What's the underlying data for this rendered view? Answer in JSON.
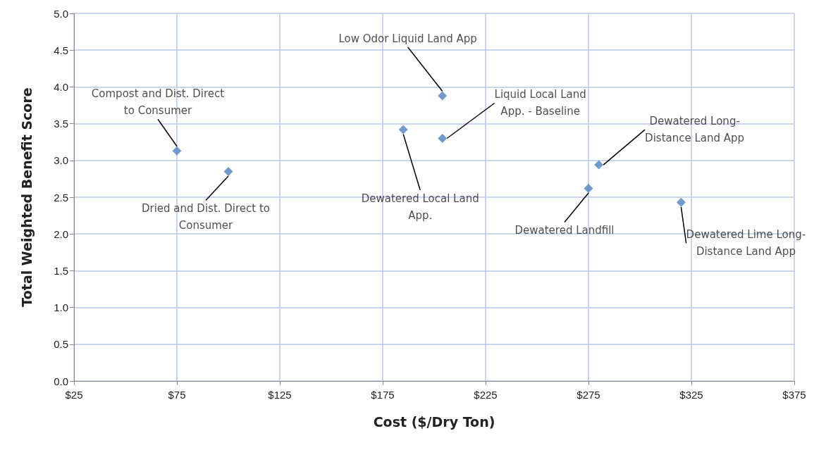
{
  "chart_data": {
    "type": "scatter",
    "xlabel": "Cost ($/Dry Ton)",
    "ylabel": "Total Weighted Benefit Score",
    "x": [
      75,
      100,
      185,
      204,
      204,
      275,
      280,
      320
    ],
    "values": [
      3.13,
      2.85,
      3.42,
      3.88,
      3.3,
      2.62,
      2.94,
      2.43
    ],
    "color": "#4f81bd",
    "marker": "diamond",
    "grid": true,
    "xlim": [
      25,
      375
    ],
    "xticks": [
      {
        "value": 25,
        "label": "$25"
      },
      {
        "value": 75,
        "label": "$75"
      },
      {
        "value": 125,
        "label": "$125"
      },
      {
        "value": 175,
        "label": "$175"
      },
      {
        "value": 225,
        "label": "$225"
      },
      {
        "value": 275,
        "label": "$275"
      },
      {
        "value": 325,
        "label": "$325"
      },
      {
        "value": 375,
        "label": "$375"
      }
    ],
    "ylim": [
      0,
      5
    ],
    "yticks": [
      {
        "value": 0,
        "label": "0.0"
      },
      {
        "value": 0.5,
        "label": "0.5"
      },
      {
        "value": 1,
        "label": "1.0"
      },
      {
        "value": 1.5,
        "label": "1.5"
      },
      {
        "value": 2,
        "label": "2.0"
      },
      {
        "value": 2.5,
        "label": "2.5"
      },
      {
        "value": 3,
        "label": "3.0"
      },
      {
        "value": 3.5,
        "label": "3.5"
      },
      {
        "value": 4,
        "label": "4.0"
      },
      {
        "value": 4.5,
        "label": "4.5"
      },
      {
        "value": 5,
        "label": "5.0"
      }
    ],
    "annotations": [
      {
        "text": "Compost and Dist. Direct\nto Consumer",
        "x": 75,
        "y": 3.13
      },
      {
        "text": "Dried and Dist. Direct to\nConsumer",
        "x": 100,
        "y": 2.85
      },
      {
        "text": "Dewatered Local Land\nApp.",
        "x": 185,
        "y": 3.42
      },
      {
        "text": "Low Odor Liquid Land App",
        "x": 204,
        "y": 3.88
      },
      {
        "text": "Liquid Local Land\nApp. - Baseline",
        "x": 204,
        "y": 3.3
      },
      {
        "text": "Dewatered Landfill",
        "x": 275,
        "y": 2.62
      },
      {
        "text": "Dewatered Long-\nDistance Land App",
        "x": 280,
        "y": 2.94
      },
      {
        "text": "Dewatered Lime Long-\nDistance Land App",
        "x": 320,
        "y": 2.43
      }
    ]
  }
}
